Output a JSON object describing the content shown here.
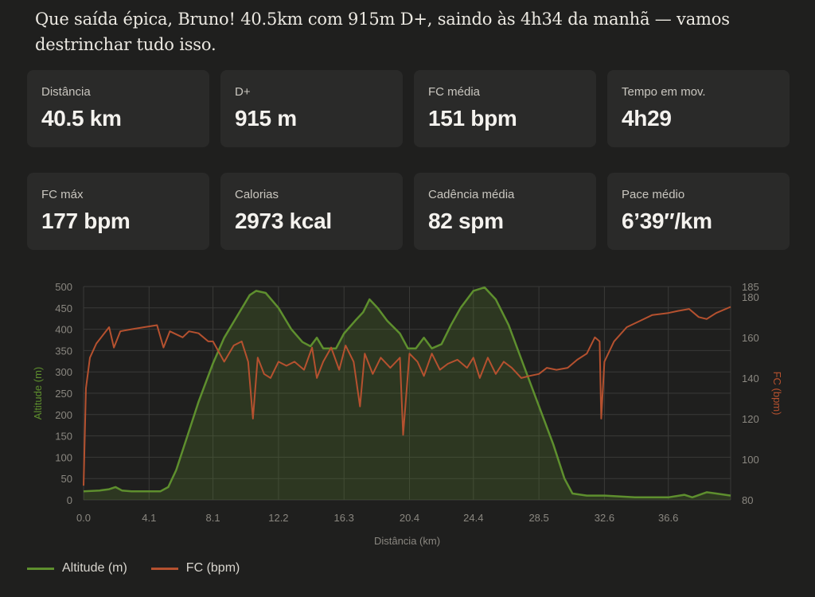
{
  "intro_text": "Que saída épica, Bruno! 40.5km com 915m D+, saindo às 4h34 da manhã — vamos destrinchar tudo isso.",
  "stats": [
    {
      "label": "Distância",
      "value": "40.5 km"
    },
    {
      "label": "D+",
      "value": "915 m"
    },
    {
      "label": "FC média",
      "value": "151 bpm"
    },
    {
      "label": "Tempo em mov.",
      "value": "4h29"
    },
    {
      "label": "FC máx",
      "value": "177 bpm"
    },
    {
      "label": "Calorias",
      "value": "2973 kcal"
    },
    {
      "label": "Cadência média",
      "value": "82 spm"
    },
    {
      "label": "Pace médio",
      "value": "6’39″/km"
    }
  ],
  "colors": {
    "altitude": "#5e8f2e",
    "hr": "#b5512f",
    "grid": "#3a3a38",
    "tick": "#8a8780"
  },
  "chart_data": {
    "type": "line",
    "xlabel": "Distância (km)",
    "ylabel": "Altitude (m)",
    "y2label": "FC (bpm)",
    "xlim": [
      0,
      40.5
    ],
    "ylim": [
      0,
      500
    ],
    "y2lim": [
      80,
      185
    ],
    "x_ticks": [
      "0.0",
      "4.1",
      "8.1",
      "12.2",
      "16.3",
      "20.4",
      "24.4",
      "28.5",
      "32.6",
      "36.6"
    ],
    "x_tick_values": [
      0.0,
      4.1,
      8.1,
      12.2,
      16.3,
      20.4,
      24.4,
      28.5,
      32.6,
      36.6
    ],
    "y_ticks": [
      0,
      50,
      100,
      150,
      200,
      250,
      300,
      350,
      400,
      450,
      500
    ],
    "y2_ticks": [
      80,
      100,
      120,
      140,
      160,
      180
    ],
    "y2_top_label": "185",
    "grid": true,
    "legend_position": "bottom-left",
    "series": [
      {
        "name": "Altitude (m)",
        "axis": "left",
        "points": [
          [
            0,
            20
          ],
          [
            1.0,
            22
          ],
          [
            1.6,
            25
          ],
          [
            2.0,
            30
          ],
          [
            2.4,
            22
          ],
          [
            3.0,
            20
          ],
          [
            4.1,
            20
          ],
          [
            4.8,
            20
          ],
          [
            5.3,
            30
          ],
          [
            5.8,
            70
          ],
          [
            6.5,
            150
          ],
          [
            7.2,
            230
          ],
          [
            8.1,
            320
          ],
          [
            8.8,
            380
          ],
          [
            9.6,
            430
          ],
          [
            10.4,
            480
          ],
          [
            10.8,
            490
          ],
          [
            11.4,
            485
          ],
          [
            12.2,
            450
          ],
          [
            13.0,
            400
          ],
          [
            13.7,
            370
          ],
          [
            14.2,
            360
          ],
          [
            14.6,
            380
          ],
          [
            15.0,
            355
          ],
          [
            15.8,
            355
          ],
          [
            16.3,
            390
          ],
          [
            17.0,
            420
          ],
          [
            17.5,
            440
          ],
          [
            17.9,
            470
          ],
          [
            18.4,
            450
          ],
          [
            19.0,
            420
          ],
          [
            19.8,
            390
          ],
          [
            20.3,
            355
          ],
          [
            20.8,
            355
          ],
          [
            21.3,
            380
          ],
          [
            21.8,
            355
          ],
          [
            22.4,
            365
          ],
          [
            23.0,
            410
          ],
          [
            23.6,
            450
          ],
          [
            24.4,
            490
          ],
          [
            25.1,
            498
          ],
          [
            25.8,
            470
          ],
          [
            26.6,
            410
          ],
          [
            27.5,
            320
          ],
          [
            28.5,
            220
          ],
          [
            29.4,
            130
          ],
          [
            30.1,
            50
          ],
          [
            30.6,
            15
          ],
          [
            31.5,
            10
          ],
          [
            32.6,
            10
          ],
          [
            34.5,
            6
          ],
          [
            36.6,
            6
          ],
          [
            37.6,
            12
          ],
          [
            38.1,
            6
          ],
          [
            39.0,
            18
          ],
          [
            39.6,
            15
          ],
          [
            40.5,
            10
          ]
        ]
      },
      {
        "name": "FC (bpm)",
        "axis": "right",
        "points": [
          [
            0,
            87
          ],
          [
            0.15,
            135
          ],
          [
            0.4,
            150
          ],
          [
            0.8,
            157
          ],
          [
            1.2,
            161
          ],
          [
            1.6,
            165
          ],
          [
            1.9,
            155
          ],
          [
            2.3,
            163
          ],
          [
            3.0,
            164
          ],
          [
            3.8,
            165
          ],
          [
            4.6,
            166
          ],
          [
            5.0,
            155
          ],
          [
            5.4,
            163
          ],
          [
            6.2,
            160
          ],
          [
            6.6,
            163
          ],
          [
            7.2,
            162
          ],
          [
            7.8,
            158
          ],
          [
            8.1,
            158
          ],
          [
            8.8,
            148
          ],
          [
            9.4,
            156
          ],
          [
            9.9,
            158
          ],
          [
            10.3,
            148
          ],
          [
            10.6,
            120
          ],
          [
            10.9,
            150
          ],
          [
            11.3,
            142
          ],
          [
            11.7,
            140
          ],
          [
            12.2,
            148
          ],
          [
            12.7,
            146
          ],
          [
            13.2,
            148
          ],
          [
            13.8,
            144
          ],
          [
            14.3,
            155
          ],
          [
            14.6,
            140
          ],
          [
            15.0,
            148
          ],
          [
            15.5,
            155
          ],
          [
            16.0,
            144
          ],
          [
            16.4,
            156
          ],
          [
            16.9,
            148
          ],
          [
            17.3,
            126
          ],
          [
            17.6,
            152
          ],
          [
            18.1,
            142
          ],
          [
            18.6,
            150
          ],
          [
            19.2,
            145
          ],
          [
            19.8,
            150
          ],
          [
            20.0,
            112
          ],
          [
            20.4,
            152
          ],
          [
            20.9,
            148
          ],
          [
            21.3,
            141
          ],
          [
            21.8,
            152
          ],
          [
            22.3,
            144
          ],
          [
            22.8,
            147
          ],
          [
            23.4,
            149
          ],
          [
            24.0,
            145
          ],
          [
            24.4,
            150
          ],
          [
            24.8,
            140
          ],
          [
            25.3,
            150
          ],
          [
            25.8,
            142
          ],
          [
            26.3,
            148
          ],
          [
            26.8,
            145
          ],
          [
            27.4,
            140
          ],
          [
            27.9,
            141
          ],
          [
            28.5,
            142
          ],
          [
            29.0,
            145
          ],
          [
            29.6,
            144
          ],
          [
            30.3,
            145
          ],
          [
            30.9,
            149
          ],
          [
            31.5,
            152
          ],
          [
            32.0,
            160
          ],
          [
            32.3,
            158
          ],
          [
            32.4,
            120
          ],
          [
            32.6,
            148
          ],
          [
            33.2,
            158
          ],
          [
            34.0,
            165
          ],
          [
            34.8,
            168
          ],
          [
            35.6,
            171
          ],
          [
            36.6,
            172
          ],
          [
            37.2,
            173
          ],
          [
            37.9,
            174
          ],
          [
            38.5,
            170
          ],
          [
            39.0,
            169
          ],
          [
            39.6,
            172
          ],
          [
            40.5,
            175
          ]
        ]
      }
    ]
  }
}
